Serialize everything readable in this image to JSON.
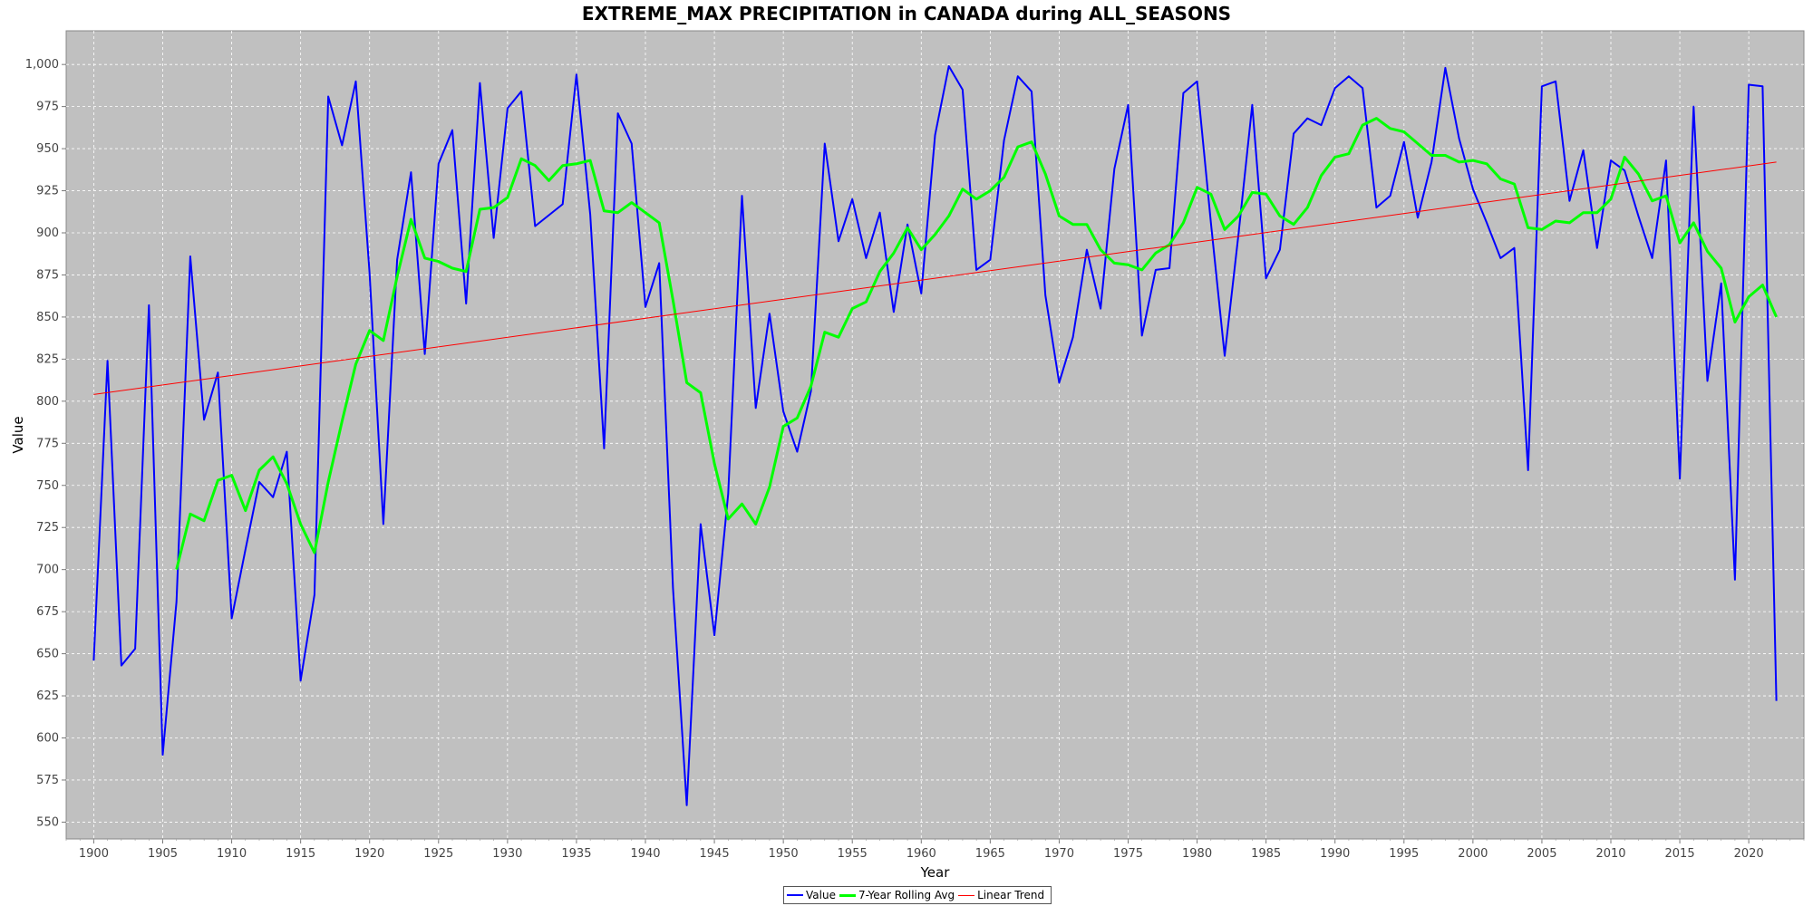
{
  "chart_data": {
    "type": "line",
    "title": "EXTREME_MAX PRECIPITATION in CANADA during ALL_SEASONS",
    "xlabel": "Year",
    "ylabel": "Value",
    "xlim": [
      1898,
      2024
    ],
    "ylim": [
      540,
      1020
    ],
    "x_ticks": [
      1900,
      1905,
      1910,
      1915,
      1920,
      1925,
      1930,
      1935,
      1940,
      1945,
      1950,
      1955,
      1960,
      1965,
      1970,
      1975,
      1980,
      1985,
      1990,
      1995,
      2000,
      2005,
      2010,
      2015,
      2020
    ],
    "y_ticks": [
      550,
      575,
      600,
      625,
      650,
      675,
      700,
      725,
      750,
      775,
      800,
      825,
      850,
      875,
      900,
      925,
      950,
      975,
      1000
    ],
    "y_tick_labels": [
      "550",
      "575",
      "600",
      "625",
      "650",
      "675",
      "700",
      "725",
      "750",
      "775",
      "800",
      "825",
      "850",
      "875",
      "900",
      "925",
      "950",
      "975",
      "1,000"
    ],
    "grid": true,
    "background": "#c0c0c0",
    "legend_position": "bottom-center",
    "series": [
      {
        "name": "Value",
        "color": "#0000ff",
        "width": 2,
        "x": [
          1900,
          1901,
          1902,
          1903,
          1904,
          1905,
          1906,
          1907,
          1908,
          1909,
          1910,
          1911,
          1912,
          1913,
          1914,
          1915,
          1916,
          1917,
          1918,
          1919,
          1920,
          1921,
          1922,
          1923,
          1924,
          1925,
          1926,
          1927,
          1928,
          1929,
          1930,
          1931,
          1932,
          1934,
          1935,
          1936,
          1937,
          1938,
          1939,
          1940,
          1941,
          1942,
          1943,
          1944,
          1945,
          1946,
          1947,
          1948,
          1949,
          1950,
          1951,
          1952,
          1953,
          1954,
          1955,
          1956,
          1957,
          1958,
          1959,
          1960,
          1961,
          1962,
          1963,
          1964,
          1965,
          1966,
          1967,
          1968,
          1969,
          1970,
          1971,
          1972,
          1973,
          1974,
          1975,
          1976,
          1977,
          1978,
          1979,
          1980,
          1981,
          1982,
          1983,
          1984,
          1985,
          1986,
          1987,
          1988,
          1989,
          1990,
          1991,
          1992,
          1993,
          1994,
          1995,
          1996,
          1997,
          1998,
          1999,
          2000,
          2001,
          2002,
          2003,
          2004,
          2005,
          2006,
          2007,
          2008,
          2009,
          2010,
          2011,
          2012,
          2013,
          2014,
          2015,
          2016,
          2017,
          2018,
          2019,
          2020,
          2021,
          2022
        ],
        "values": [
          646,
          824,
          643,
          653,
          857,
          590,
          681,
          886,
          789,
          817,
          671,
          712,
          752,
          743,
          770,
          634,
          685,
          981,
          952,
          990,
          876,
          727,
          884,
          936,
          828,
          941,
          961,
          858,
          989,
          897,
          974,
          984,
          904,
          917,
          994,
          911,
          772,
          971,
          953,
          856,
          882,
          689,
          560,
          727,
          661,
          745,
          922,
          796,
          852,
          794,
          770,
          806,
          953,
          895,
          920,
          885,
          912,
          853,
          905,
          864,
          958,
          999,
          985,
          878,
          884,
          955,
          993,
          984,
          863,
          811,
          838,
          890,
          855,
          938,
          976,
          839,
          878,
          879,
          983,
          990,
          906,
          827,
          899,
          976,
          873,
          890,
          959,
          968,
          964,
          986,
          993,
          986,
          915,
          922,
          954,
          909,
          942,
          998,
          956,
          926,
          906,
          885,
          891,
          759,
          987,
          990,
          919,
          949,
          891,
          943,
          937,
          910,
          885,
          943,
          754,
          975,
          812,
          870,
          694,
          988,
          987,
          622
        ]
      },
      {
        "name": "7-Year Rolling Avg",
        "color": "#00ff00",
        "width": 3,
        "x": [
          1906,
          1907,
          1908,
          1909,
          1910,
          1911,
          1912,
          1913,
          1914,
          1915,
          1916,
          1917,
          1918,
          1919,
          1920,
          1921,
          1922,
          1923,
          1924,
          1925,
          1926,
          1927,
          1928,
          1929,
          1930,
          1931,
          1932,
          1933,
          1934,
          1935,
          1936,
          1937,
          1938,
          1939,
          1940,
          1941,
          1942,
          1943,
          1944,
          1945,
          1946,
          1947,
          1948,
          1949,
          1950,
          1951,
          1952,
          1953,
          1954,
          1955,
          1956,
          1957,
          1958,
          1959,
          1960,
          1961,
          1962,
          1963,
          1964,
          1965,
          1966,
          1967,
          1968,
          1969,
          1970,
          1971,
          1972,
          1973,
          1974,
          1975,
          1976,
          1977,
          1978,
          1979,
          1980,
          1981,
          1982,
          1983,
          1984,
          1985,
          1986,
          1987,
          1988,
          1989,
          1990,
          1991,
          1992,
          1993,
          1994,
          1995,
          1996,
          1997,
          1998,
          1999,
          2000,
          2001,
          2002,
          2003,
          2004,
          2005,
          2006,
          2007,
          2008,
          2009,
          2010,
          2011,
          2012,
          2013,
          2014,
          2015,
          2016,
          2017,
          2018,
          2019,
          2020,
          2021,
          2022
        ],
        "values": [
          700,
          733,
          729,
          753,
          756,
          735,
          759,
          767,
          751,
          727,
          710,
          752,
          788,
          822,
          842,
          836,
          874,
          908,
          885,
          883,
          879,
          877,
          914,
          915,
          921,
          944,
          940,
          931,
          940,
          941,
          943,
          913,
          912,
          918,
          912,
          906,
          860,
          811,
          805,
          763,
          730,
          739,
          727,
          749,
          785,
          790,
          809,
          841,
          838,
          855,
          859,
          877,
          888,
          903,
          890,
          899,
          910,
          926,
          920,
          925,
          933,
          951,
          954,
          935,
          910,
          905,
          905,
          890,
          882,
          881,
          878,
          888,
          893,
          906,
          927,
          923,
          902,
          910,
          924,
          923,
          910,
          905,
          915,
          934,
          945,
          947,
          964,
          968,
          962,
          960,
          953,
          946,
          946,
          942,
          943,
          941,
          932,
          929,
          903,
          902,
          907,
          906,
          912,
          912,
          920,
          945,
          935,
          919,
          922,
          894,
          906,
          889,
          879,
          847,
          862,
          869,
          850
        ]
      },
      {
        "name": "Linear Trend",
        "color": "#ff0000",
        "width": 1,
        "x": [
          1900,
          2022
        ],
        "values": [
          804,
          942
        ]
      }
    ]
  }
}
